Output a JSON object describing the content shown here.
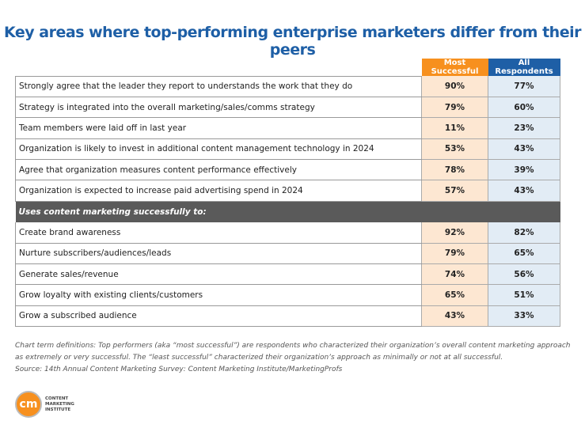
{
  "chart_data": {
    "type": "table",
    "title": "Key areas where top-performing enterprise marketers differ from their peers",
    "columns": [
      "Most Successful",
      "All Respondents"
    ],
    "colors": {
      "most_successful": "#f7901e",
      "all_respondents": "#1e5fa6",
      "section": "#5a5a5a"
    },
    "rows": [
      {
        "label": "Strongly agree that the leader they report to understands the work that they do",
        "ms": "90%",
        "ar": "77%"
      },
      {
        "label": "Strategy is integrated into the overall marketing/sales/comms strategy",
        "ms": "79%",
        "ar": "60%"
      },
      {
        "label": "Team members were laid off in last year",
        "ms": "11%",
        "ar": "23%"
      },
      {
        "label": "Organization is likely to invest in additional content management technology in 2024",
        "ms": "53%",
        "ar": "43%"
      },
      {
        "label": "Agree that organization measures content performance effectively",
        "ms": "78%",
        "ar": "39%"
      },
      {
        "label": "Organization is expected to increase paid advertising spend in 2024",
        "ms": "57%",
        "ar": "43%"
      }
    ],
    "section_label": "Uses content marketing successfully to:",
    "section_rows": [
      {
        "label": "Create brand awareness",
        "ms": "92%",
        "ar": "82%"
      },
      {
        "label": "Nurture subscribers/audiences/leads",
        "ms": "79%",
        "ar": "65%"
      },
      {
        "label": "Generate sales/revenue",
        "ms": "74%",
        "ar": "56%"
      },
      {
        "label": "Grow loyalty with existing clients/customers",
        "ms": "65%",
        "ar": "51%"
      },
      {
        "label": "Grow a subscribed audience",
        "ms": "43%",
        "ar": "33%"
      }
    ]
  },
  "notes": [
    "Chart term definitions: Top performers (aka “most successful”) are respondents who characterized their organization’s overall content marketing approach",
    "as extremely or very successful. The “least successful” characterized their organization’s approach as minimally or not at all successful.",
    "Source: 14th Annual Content Marketing Survey: Content Marketing Institute/MarketingProfs"
  ],
  "logo": {
    "mark": "cm",
    "lines": [
      "CONTENT",
      "MARKETING",
      "INSTITUTE"
    ]
  }
}
